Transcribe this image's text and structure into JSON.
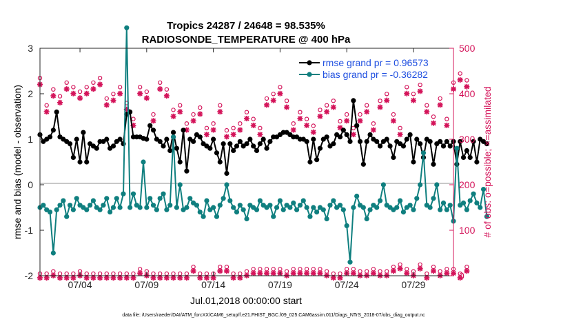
{
  "chart_data": {
    "type": "line",
    "title": "Tropics 24287 / 24648 = 98.535%",
    "subtitle": "RADIOSONDE_TEMPERATURE @ 400 hPa",
    "xlabel": "Jul.01,2018 00:00:00 start",
    "ylabel": "rmse and bias (model - observation)",
    "y2label": "# of obs: o=possible; ×=assimilated",
    "footnote": "data file: /Users/raeder/DAI/ATM_forcXX/CAM6_setup/f.e21.FHIST_BGC.f09_025.CAM6assim.011/Diags_NTrS_2018-07/obs_diag_output.nc",
    "x_range": [
      1.0,
      32.0
    ],
    "ylim": [
      -2,
      3
    ],
    "y2lim": [
      0,
      500
    ],
    "xticks": [
      {
        "label": "07/04",
        "value": 4
      },
      {
        "label": "07/09",
        "value": 9
      },
      {
        "label": "07/14",
        "value": 14
      },
      {
        "label": "07/19",
        "value": 19
      },
      {
        "label": "07/24",
        "value": 24
      },
      {
        "label": "07/29",
        "value": 29
      }
    ],
    "yticks": [
      "3",
      "2",
      "1",
      "0",
      "-1",
      "-2"
    ],
    "y2ticks": [
      "500",
      "400",
      "300",
      "200",
      "100",
      "0"
    ],
    "colors": {
      "rmse": "#000000",
      "bias": "#0f7f7f",
      "counts": "#d4145a",
      "zero_line": "#c8c8c8",
      "legend_text": "#1f4fe0"
    },
    "legend": [
      {
        "label": "rmse grand pr = 0.96573",
        "series": "rmse"
      },
      {
        "label": "bias grand pr = -0.36282",
        "series": "bias"
      }
    ],
    "series": [
      {
        "name": "rmse",
        "axis": "left",
        "x0": 1.0,
        "dx": 0.25,
        "values": [
          1.1,
          0.95,
          1.0,
          1.05,
          1.2,
          1.6,
          1.05,
          1.0,
          0.95,
          0.9,
          0.6,
          1.0,
          0.5,
          1.15,
          0.5,
          0.9,
          0.85,
          0.8,
          0.95,
          0.95,
          1.0,
          0.8,
          0.85,
          0.95,
          1.0,
          0.9,
          1.55,
          1.6,
          1.05,
          1.05,
          1.05,
          1.02,
          1.0,
          1.3,
          1.2,
          1.0,
          0.95,
          0.85,
          1.0,
          0.75,
          1.15,
          0.8,
          0.5,
          1.2,
          0.3,
          1.0,
          0.95,
          1.1,
          1.05,
          0.9,
          0.85,
          0.8,
          1.0,
          0.7,
          0.5,
          0.9,
          0.25,
          0.9,
          0.75,
          0.85,
          0.95,
          0.85,
          0.9,
          1.0,
          0.85,
          0.75,
          0.9,
          1.0,
          0.8,
          0.95,
          1.05,
          1.05,
          1.1,
          1.15,
          1.15,
          1.1,
          1.05,
          1.05,
          1.0,
          1.0,
          0.95,
          0.5,
          1.0,
          0.55,
          0.8,
          1.0,
          1.05,
          0.85,
          0.9,
          1.1,
          1.05,
          1.2,
          1.1,
          0.95,
          1.85,
          1.3,
          0.95,
          0.45,
          0.95,
          1.1,
          1.0,
          0.95,
          0.85,
          0.95,
          1.0,
          0.85,
          0.6,
          0.95,
          0.9,
          0.85,
          1.0,
          1.1,
          0.5,
          1.0,
          0.9,
          0.6,
          1.0,
          0.95,
          0.45,
          0.9,
          0.95,
          0.85,
          0.95,
          0.85,
          0.95,
          0.45,
          0.95,
          0.6,
          0.75,
          0.6,
          0.95,
          0.5,
          1.0,
          0.95,
          0.9
        ]
      },
      {
        "name": "bias",
        "axis": "left",
        "x0": 1.0,
        "dx": 0.25,
        "values": [
          -0.5,
          -0.45,
          -0.55,
          -0.6,
          -1.5,
          -0.55,
          -0.45,
          -0.35,
          -0.7,
          -0.45,
          -0.55,
          -0.3,
          -0.45,
          -0.5,
          -0.55,
          -0.45,
          -0.35,
          -0.5,
          -0.55,
          -0.45,
          -0.3,
          -0.6,
          -0.5,
          -0.3,
          -0.5,
          -0.2,
          3.45,
          -0.5,
          -0.2,
          -0.45,
          -0.5,
          0.5,
          -0.5,
          -0.3,
          -0.45,
          -0.55,
          -0.3,
          -0.2,
          -0.55,
          -0.45,
          1.05,
          -0.5,
          0.0,
          -0.55,
          -0.5,
          -0.3,
          -0.4,
          -0.45,
          -0.6,
          -0.7,
          -0.35,
          -0.55,
          -0.5,
          -0.7,
          -0.45,
          -0.3,
          0.0,
          -0.35,
          -0.5,
          -0.6,
          -0.45,
          -0.55,
          -0.75,
          -0.45,
          -0.5,
          -0.55,
          -0.35,
          -0.45,
          -0.5,
          -0.45,
          -0.7,
          -0.5,
          -0.35,
          -0.55,
          -0.45,
          -0.5,
          -0.4,
          -0.55,
          -0.45,
          -0.35,
          -0.5,
          -0.7,
          -0.5,
          -0.6,
          -0.5,
          -0.55,
          -0.75,
          -0.45,
          -0.35,
          -0.5,
          -0.45,
          -0.55,
          -0.9,
          -1.7,
          -0.5,
          -0.25,
          -0.45,
          -0.5,
          -0.75,
          -0.55,
          -0.45,
          -0.5,
          -0.35,
          0.0,
          -0.45,
          -0.5,
          -0.55,
          -0.5,
          -0.35,
          -0.6,
          -0.5,
          -0.45,
          -0.55,
          -0.3,
          0.0,
          0.7,
          -0.45,
          -0.5,
          -0.3,
          0.0,
          -0.55,
          -0.4,
          -0.55,
          -0.45,
          -0.8,
          0.8,
          -0.45,
          -0.4,
          -0.55,
          -0.35,
          -0.2,
          -0.4,
          -0.5,
          -0.1,
          -0.7
        ]
      },
      {
        "name": "possible_obs",
        "axis": "right",
        "x0": 1.0,
        "dx": 0.5,
        "values": [
          430,
          370,
          405,
          390,
          420,
          410,
          400,
          410,
          420,
          430,
          385,
          395,
          410,
          375,
          340,
          410,
          400,
          350,
          420,
          405,
          360,
          370,
          330,
          350,
          365,
          320,
          330,
          370,
          315,
          320,
          330,
          355,
          340,
          320,
          385,
          395,
          410,
          380,
          330,
          355,
          340,
          325,
          360,
          370,
          380,
          335,
          350,
          320,
          350,
          370,
          330,
          380,
          395,
          350,
          320,
          410,
          395,
          415,
          370,
          345,
          385,
          340,
          420,
          440,
          425
        ]
      },
      {
        "name": "assimilated_obs",
        "axis": "right",
        "x0": 1.0,
        "dx": 0.5,
        "values": [
          425,
          365,
          400,
          385,
          415,
          405,
          395,
          405,
          415,
          425,
          380,
          390,
          405,
          370,
          335,
          405,
          395,
          345,
          415,
          400,
          355,
          365,
          325,
          345,
          360,
          315,
          325,
          365,
          310,
          315,
          325,
          350,
          335,
          315,
          380,
          390,
          405,
          375,
          325,
          350,
          335,
          320,
          355,
          365,
          375,
          330,
          345,
          315,
          345,
          365,
          325,
          375,
          390,
          345,
          315,
          405,
          390,
          410,
          365,
          340,
          380,
          335,
          415,
          435,
          420
        ]
      },
      {
        "name": "possible_obs_low",
        "axis": "right",
        "x0": 1.0,
        "dx": 0.5,
        "values": [
          0,
          0,
          5,
          0,
          0,
          0,
          5,
          0,
          0,
          0,
          0,
          0,
          0,
          0,
          0,
          10,
          5,
          0,
          0,
          0,
          0,
          0,
          0,
          15,
          0,
          0,
          0,
          15,
          15,
          0,
          0,
          5,
          10,
          10,
          10,
          10,
          10,
          5,
          10,
          10,
          10,
          10,
          10,
          5,
          0,
          0,
          10,
          10,
          5,
          5,
          10,
          5,
          5,
          15,
          20,
          10,
          5,
          20,
          0,
          15,
          5,
          10,
          10,
          0,
          15
        ]
      },
      {
        "name": "assimilated_obs_low",
        "axis": "right",
        "x0": 1.0,
        "dx": 0.5,
        "values": [
          0,
          0,
          5,
          0,
          0,
          0,
          5,
          0,
          0,
          0,
          0,
          0,
          0,
          0,
          0,
          10,
          5,
          0,
          0,
          0,
          0,
          0,
          0,
          15,
          0,
          0,
          0,
          15,
          15,
          0,
          0,
          5,
          10,
          10,
          10,
          10,
          10,
          5,
          10,
          10,
          10,
          10,
          10,
          5,
          0,
          0,
          10,
          10,
          5,
          5,
          10,
          5,
          5,
          15,
          20,
          10,
          5,
          20,
          0,
          15,
          5,
          10,
          10,
          0,
          15
        ]
      }
    ]
  }
}
